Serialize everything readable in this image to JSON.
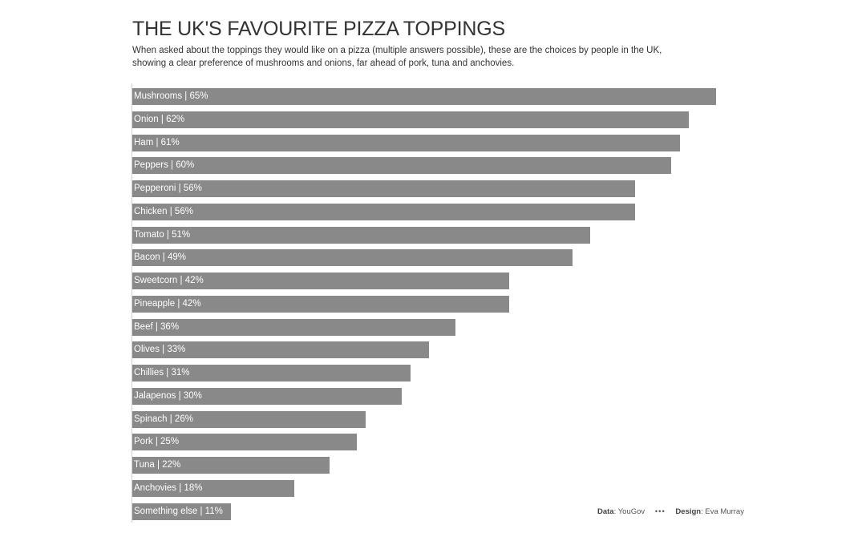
{
  "header": {
    "title": "THE UK'S FAVOURITE PIZZA TOPPINGS",
    "subtitle": "When asked about the toppings they would like on a pizza (multiple answers possible), these are the choices by people in the UK, showing a clear preference of mushrooms and onions, far ahead of pork, tuna and anchovies."
  },
  "footer": {
    "data_label": "Data",
    "data_value": ": YouGov",
    "separator": "•••",
    "design_label": "Design",
    "design_value": ": Eva Murray"
  },
  "style": {
    "bar_color": "#898989",
    "label_color": "#ffffff"
  },
  "chart_data": {
    "type": "bar",
    "orientation": "horizontal",
    "title": "THE UK'S FAVOURITE PIZZA TOPPINGS",
    "subtitle": "When asked about the toppings they would like on a pizza (multiple answers possible), these are the choices by people in the UK, showing a clear preference of mushrooms and onions, far ahead of pork, tuna and anchovies.",
    "xlabel": "",
    "ylabel": "",
    "xlim": [
      0,
      65
    ],
    "grid": false,
    "legend": null,
    "categories": [
      "Mushrooms",
      "Onion",
      "Ham",
      "Peppers",
      "Pepperoni",
      "Chicken",
      "Tomato",
      "Bacon",
      "Sweetcorn",
      "Pineapple",
      "Beef",
      "Olives",
      "Chillies",
      "Jalapenos",
      "Spinach",
      "Pork",
      "Tuna",
      "Anchovies",
      "Something else"
    ],
    "values": [
      65,
      62,
      61,
      60,
      56,
      56,
      51,
      49,
      42,
      42,
      36,
      33,
      31,
      30,
      26,
      25,
      22,
      18,
      11
    ],
    "labels": [
      "Mushrooms | 65%",
      "Onion | 62%",
      "Ham | 61%",
      "Peppers | 60%",
      "Pepperoni | 56%",
      "Chicken | 56%",
      "Tomato | 51%",
      "Bacon | 49%",
      "Sweetcorn | 42%",
      "Pineapple | 42%",
      "Beef | 36%",
      "Olives | 33%",
      "Chillies | 31%",
      "Jalapenos | 30%",
      "Spinach | 26%",
      "Pork | 25%",
      "Tuna | 22%",
      "Anchovies | 18%",
      "Something else | 11%"
    ],
    "unit": "%",
    "source": "Data: YouGov",
    "credit": "Design: Eva Murray"
  }
}
